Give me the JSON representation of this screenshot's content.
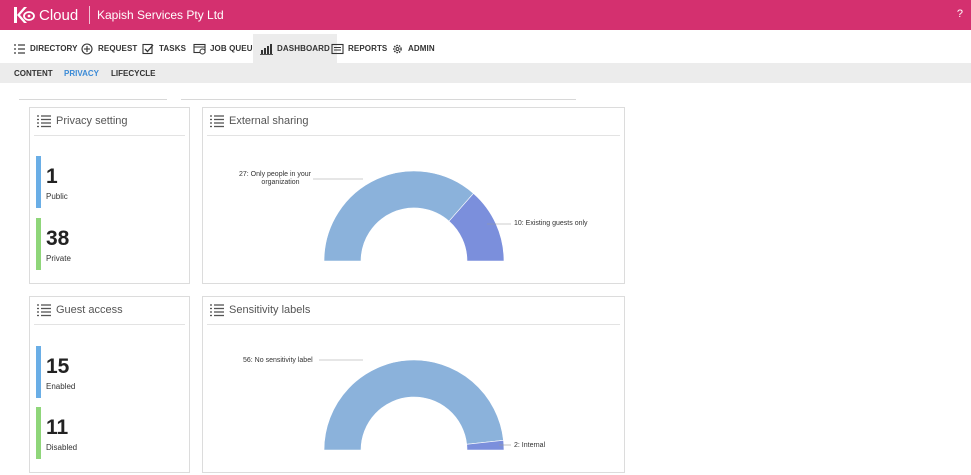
{
  "app": {
    "logo_text": "Cloud",
    "org_name": "Kapish Services Pty Ltd",
    "help": "?"
  },
  "nav": {
    "items": [
      {
        "label": "DIRECTORY",
        "icon": "list-icon"
      },
      {
        "label": "REQUEST",
        "icon": "plus-circle-icon"
      },
      {
        "label": "TASKS",
        "icon": "checkbox-icon"
      },
      {
        "label": "JOB QUEUE",
        "icon": "job-queue-icon"
      },
      {
        "label": "DASHBOARD",
        "icon": "dashboard-icon"
      },
      {
        "label": "REPORTS",
        "icon": "reports-icon"
      },
      {
        "label": "ADMIN",
        "icon": "gear-icon"
      }
    ],
    "active": "DASHBOARD"
  },
  "subnav": {
    "items": [
      "CONTENT",
      "PRIVACY",
      "LIFECYCLE"
    ],
    "active": "PRIVACY"
  },
  "cards": {
    "privacy": {
      "title": "Privacy setting",
      "stats": [
        {
          "value": "1",
          "label": "Public",
          "color": "#6aaee6"
        },
        {
          "value": "38",
          "label": "Private",
          "color": "#8fd67a"
        }
      ]
    },
    "guest": {
      "title": "Guest access",
      "stats": [
        {
          "value": "15",
          "label": "Enabled",
          "color": "#6aaee6"
        },
        {
          "value": "11",
          "label": "Disabled",
          "color": "#8fd67a"
        }
      ]
    },
    "external": {
      "title": "External sharing",
      "label_a_line1": "27: Only people in your",
      "label_a_line2": "organization",
      "label_b": "10: Existing guests only"
    },
    "sensitivity": {
      "title": "Sensitivity labels",
      "label_a": "56: No sensitivity label",
      "label_b": "2: Internal"
    }
  },
  "colors": {
    "brand": "#d4306f",
    "slice_primary": "#8bb2db",
    "slice_secondary": "#7b8fdc",
    "link": "#3a8ad6"
  },
  "chart_data": [
    {
      "type": "pie",
      "title": "External sharing",
      "categories": [
        "Only people in your organization",
        "Existing guests only"
      ],
      "values": [
        27,
        10
      ]
    },
    {
      "type": "pie",
      "title": "Sensitivity labels",
      "categories": [
        "No sensitivity label",
        "Internal"
      ],
      "values": [
        56,
        2
      ]
    }
  ]
}
